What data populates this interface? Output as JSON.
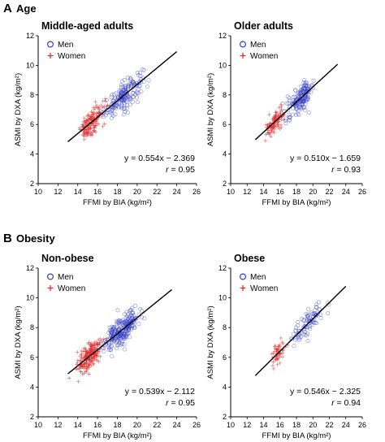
{
  "sections": [
    {
      "letter": "A",
      "title": "Age"
    },
    {
      "letter": "B",
      "title": "Obesity"
    }
  ],
  "legend": {
    "men": "Men",
    "women": "Women"
  },
  "colors": {
    "men": "#3440c4",
    "women": "#e03030",
    "line": "#000000"
  },
  "chart_data": [
    {
      "type": "scatter",
      "section": "A",
      "title": "Middle-aged adults",
      "xlabel": "FFMI by BIA (kg/m²)",
      "ylabel": "ASMI by DXA (kg/m²)",
      "xlim": [
        10,
        26
      ],
      "ylim": [
        2,
        12
      ],
      "xticks": [
        10,
        12,
        14,
        16,
        18,
        20,
        22,
        24,
        26
      ],
      "yticks": [
        2,
        4,
        6,
        8,
        10,
        12
      ],
      "equation": "y = 0.554x − 2.369",
      "r_label": "r",
      "r_value": "= 0.95",
      "fit": {
        "slope": 0.554,
        "intercept": -2.369,
        "x_range": [
          13,
          24
        ]
      },
      "series": [
        {
          "name": "Men",
          "marker": "circle",
          "x_range": [
            15.5,
            24
          ],
          "center": 18.6,
          "spread": 1.8,
          "count": 190,
          "residual_sd": 0.45
        },
        {
          "name": "Women",
          "marker": "plus",
          "x_range": [
            13,
            18.5
          ],
          "center": 15.4,
          "spread": 1.1,
          "count": 160,
          "residual_sd": 0.4
        }
      ]
    },
    {
      "type": "scatter",
      "section": "A",
      "title": "Older adults",
      "xlabel": "FFMI by BIA (kg/m²)",
      "ylabel": "ASMI by DXA (kg/m²)",
      "xlim": [
        10,
        26
      ],
      "ylim": [
        2,
        12
      ],
      "xticks": [
        10,
        12,
        14,
        16,
        18,
        20,
        22,
        24,
        26
      ],
      "yticks": [
        2,
        4,
        6,
        8,
        10,
        12
      ],
      "equation": "y = 0.510x − 1.659",
      "r_label": "r",
      "r_value": "= 0.93",
      "fit": {
        "slope": 0.51,
        "intercept": -1.659,
        "x_range": [
          13,
          23
        ]
      },
      "series": [
        {
          "name": "Men",
          "marker": "circle",
          "x_range": [
            15.5,
            23.2
          ],
          "center": 18.5,
          "spread": 1.5,
          "count": 170,
          "residual_sd": 0.42
        },
        {
          "name": "Women",
          "marker": "plus",
          "x_range": [
            13,
            18
          ],
          "center": 15.3,
          "spread": 1.0,
          "count": 110,
          "residual_sd": 0.35
        }
      ]
    },
    {
      "type": "scatter",
      "section": "B",
      "title": "Non-obese",
      "xlabel": "FFMI by BIA (kg/m²)",
      "ylabel": "ASMI by DXA (kg/m²)",
      "xlim": [
        10,
        26
      ],
      "ylim": [
        2,
        12
      ],
      "xticks": [
        10,
        12,
        14,
        16,
        18,
        20,
        22,
        24,
        26
      ],
      "yticks": [
        2,
        4,
        6,
        8,
        10,
        12
      ],
      "equation": "y = 0.539x − 2.112",
      "r_label": "r",
      "r_value": "= 0.95",
      "fit": {
        "slope": 0.539,
        "intercept": -2.112,
        "x_range": [
          13,
          23.5
        ]
      },
      "series": [
        {
          "name": "Men",
          "marker": "circle",
          "x_range": [
            15.5,
            23.5
          ],
          "center": 18.5,
          "spread": 1.6,
          "count": 260,
          "residual_sd": 0.45
        },
        {
          "name": "Women",
          "marker": "plus",
          "x_range": [
            13,
            18.5
          ],
          "center": 15.2,
          "spread": 1.1,
          "count": 220,
          "residual_sd": 0.4
        }
      ]
    },
    {
      "type": "scatter",
      "section": "B",
      "title": "Obese",
      "xlabel": "FFMI by BIA (kg/m²)",
      "ylabel": "ASMI by DXA (kg/m²)",
      "xlim": [
        10,
        26
      ],
      "ylim": [
        2,
        12
      ],
      "xticks": [
        10,
        12,
        14,
        16,
        18,
        20,
        22,
        24,
        26
      ],
      "yticks": [
        2,
        4,
        6,
        8,
        10,
        12
      ],
      "equation": "y = 0.546x − 2.325",
      "r_label": "r",
      "r_value": "= 0.94",
      "fit": {
        "slope": 0.546,
        "intercept": -2.325,
        "x_range": [
          13,
          24
        ]
      },
      "series": [
        {
          "name": "Men",
          "marker": "circle",
          "x_range": [
            16,
            24
          ],
          "center": 19.5,
          "spread": 1.8,
          "count": 90,
          "residual_sd": 0.45
        },
        {
          "name": "Women",
          "marker": "plus",
          "x_range": [
            14,
            17.5
          ],
          "center": 15.7,
          "spread": 0.8,
          "count": 55,
          "residual_sd": 0.4
        }
      ]
    }
  ]
}
